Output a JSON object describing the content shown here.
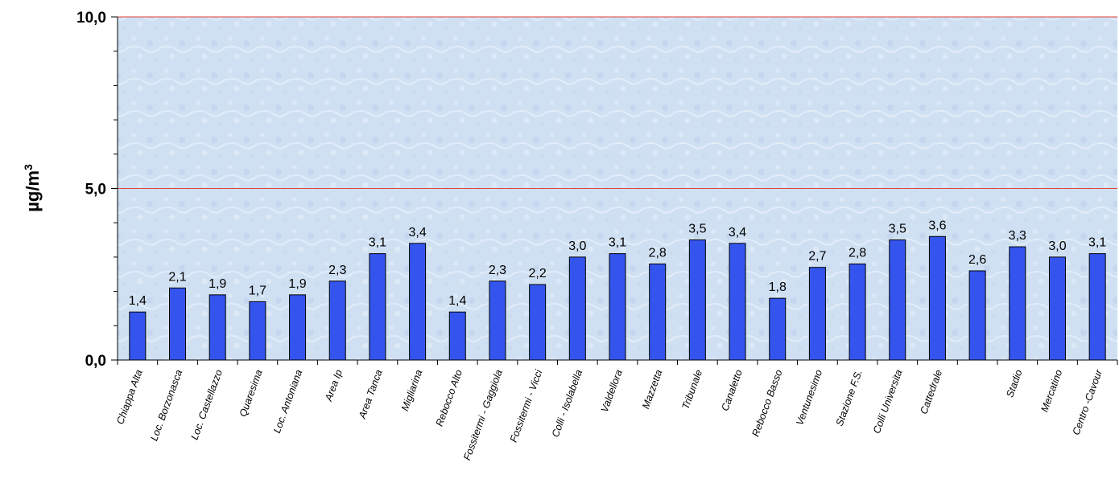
{
  "chart_data": {
    "type": "bar",
    "ylabel": "µg/m",
    "ylabel_superscript": "3",
    "categories": [
      "Chiappa Alta",
      "Loc. Borzonasca",
      "Loc. Castellazzo",
      "Quaresima",
      "Loc. Antoniana",
      "Area Ip",
      "Area Tanca",
      "Migliarina",
      "Rebocco Alto",
      "Fossitermi - Gaggiola",
      "Fossitermi - Vicci",
      "Colli - Isolabella",
      "Valdellora",
      "Mazzetta",
      "Tribunale",
      "Canaletto",
      "Rebocco Basso",
      "Ventunesimo",
      "Stazione F.S.",
      "Colli Universita",
      "Cattedrale",
      "",
      "Stadio",
      "Mercatino",
      "Centro -Cavour"
    ],
    "values": [
      1.4,
      2.1,
      1.9,
      1.7,
      1.9,
      2.3,
      3.1,
      3.4,
      1.4,
      2.3,
      2.2,
      3.0,
      3.1,
      2.8,
      3.5,
      3.4,
      1.8,
      2.7,
      2.8,
      3.5,
      3.6,
      2.6,
      3.3,
      3.0,
      3.1
    ],
    "value_labels": [
      "1,4",
      "2,1",
      "1,9",
      "1,7",
      "1,9",
      "2,3",
      "3,1",
      "",
      "1,4",
      "2,3",
      "2,2",
      "3,0",
      "3,1",
      "2,8",
      "3,5",
      "3,4",
      "1,8",
      "2,7",
      "2,8",
      "3,5",
      "3,6",
      "2,6",
      "3,3",
      "3,0",
      "3,1"
    ],
    "value_label_extra": "3,4",
    "yticks": [
      0,
      5,
      10
    ],
    "ytick_labels": [
      "0,0",
      "5,0",
      "10,0"
    ],
    "ylim": [
      0,
      10
    ],
    "reference_lines": [
      5,
      10
    ],
    "colors": {
      "bar": "#3355ee",
      "bar_stroke": "#000000",
      "plot_bg": "#cfe0f3",
      "reference_line": "#e0413a"
    },
    "grid": false,
    "legend": "none"
  }
}
